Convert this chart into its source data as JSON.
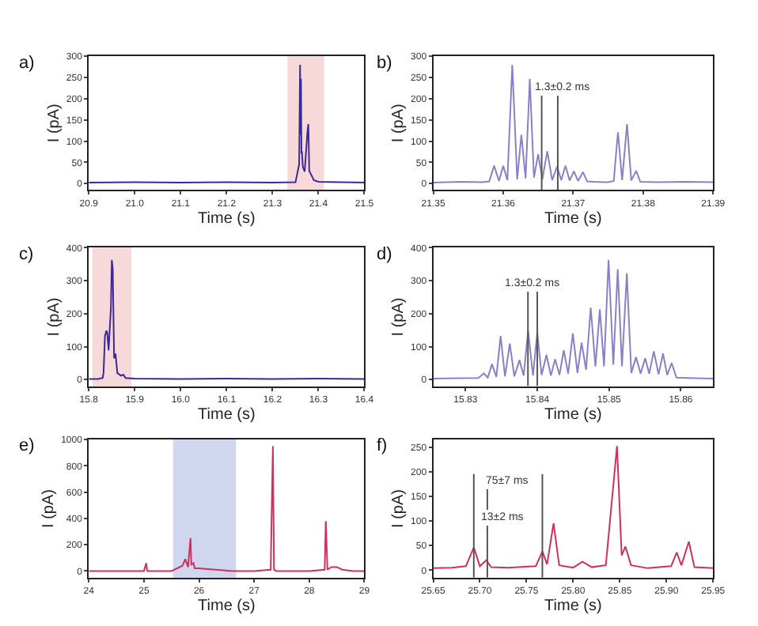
{
  "chart_data": [
    {
      "type": "line",
      "title": "a)",
      "xlabel": "Time (s)",
      "ylabel": "I (pA)",
      "xlim": [
        20.9,
        21.5
      ],
      "ylim": [
        -15,
        300
      ],
      "xticks": [
        20.9,
        {
          "value": 21.0,
          "label": "21.0"
        },
        21.1,
        21.2,
        21.3,
        21.4,
        21.5
      ],
      "yticks": [
        0,
        50,
        100,
        150,
        200,
        250,
        300
      ],
      "x": [
        20.9,
        21.0,
        21.1,
        21.2,
        21.3,
        21.35,
        21.358,
        21.36,
        21.361,
        21.362,
        21.363,
        21.364,
        21.366,
        21.37,
        21.376,
        21.378,
        21.38,
        21.39,
        21.4,
        21.45,
        21.5
      ],
      "series": [
        {
          "color": "#3b2a94",
          "values": [
            2,
            3,
            2,
            3,
            2,
            3,
            45,
            280,
            115,
            247,
            70,
            76,
            40,
            28,
            121,
            140,
            30,
            8,
            4,
            3,
            2
          ]
        }
      ],
      "bands": [
        {
          "axis": "x",
          "from": 21.335,
          "to": 21.41,
          "color": "#e06a6a"
        }
      ],
      "grid": false
    },
    {
      "type": "line",
      "title": "b)",
      "xlabel": "Time (s)",
      "ylabel": "I (pA)",
      "xlim": [
        21.35,
        21.39
      ],
      "ylim": [
        -15,
        300
      ],
      "xticks": [
        21.35,
        21.36,
        21.37,
        21.38,
        21.39
      ],
      "yticks": [
        0,
        50,
        100,
        150,
        200,
        250,
        300
      ],
      "x": [
        21.35,
        21.354,
        21.357,
        21.358,
        21.3587,
        21.3594,
        21.36,
        21.3606,
        21.3613,
        21.362,
        21.3626,
        21.3632,
        21.3638,
        21.3644,
        21.365,
        21.3656,
        21.3663,
        21.367,
        21.3677,
        21.3683,
        21.3689,
        21.3695,
        21.3701,
        21.3707,
        21.3714,
        21.372,
        21.373,
        21.375,
        21.3758,
        21.3764,
        21.377,
        21.3777,
        21.3783,
        21.379,
        21.3796,
        21.382,
        21.386,
        21.39
      ],
      "series": [
        {
          "color": "#8a80c8",
          "values": [
            2,
            4,
            3,
            5,
            42,
            6,
            42,
            8,
            280,
            10,
            115,
            12,
            247,
            14,
            69,
            10,
            76,
            8,
            40,
            8,
            42,
            7,
            29,
            6,
            27,
            5,
            4,
            3,
            6,
            121,
            8,
            140,
            7,
            30,
            4,
            3,
            4,
            3
          ]
        }
      ],
      "ref_lines": [
        {
          "axis": "x",
          "value": 21.3655,
          "color": "#555555"
        },
        {
          "axis": "x",
          "value": 21.3678,
          "color": "#555555"
        }
      ],
      "annotations": [
        {
          "text": "1.3±0.2 ms",
          "x": 21.3685,
          "y": 225
        }
      ],
      "grid": false
    },
    {
      "type": "line",
      "title": "c)",
      "xlabel": "Time (s)",
      "ylabel": "I (pA)",
      "xlim": [
        15.8,
        16.4
      ],
      "ylim": [
        -20,
        400
      ],
      "xticks": [
        15.8,
        15.9,
        {
          "value": 16.0,
          "label": "16.0"
        },
        16.1,
        16.2,
        16.3,
        16.4
      ],
      "yticks": [
        0,
        100,
        200,
        300,
        400
      ],
      "x": [
        15.8,
        15.82,
        15.83,
        15.832,
        15.835,
        15.838,
        15.84,
        15.843,
        15.845,
        15.848,
        15.85,
        15.852,
        15.855,
        15.858,
        15.862,
        15.87,
        15.875,
        15.88,
        15.9,
        16.0,
        16.1,
        16.2,
        16.3,
        16.4
      ],
      "series": [
        {
          "color": "#3b2a94",
          "values": [
            2,
            2,
            5,
            20,
            132,
            148,
            143,
            89,
            140,
            218,
            363,
            335,
            65,
            79,
            20,
            12,
            15,
            5,
            3,
            2,
            3,
            2,
            3,
            2
          ]
        }
      ],
      "bands": [
        {
          "axis": "x",
          "from": 15.81,
          "to": 15.89,
          "color": "#e06a6a"
        }
      ],
      "grid": false
    },
    {
      "type": "line",
      "title": "d)",
      "xlabel": "Time (s)",
      "ylabel": "I (pA)",
      "xlim": [
        15.8255,
        15.8645
      ],
      "ylim": [
        -20,
        400
      ],
      "xticks": [
        15.83,
        15.84,
        15.85,
        15.86
      ],
      "yticks": [
        0,
        100,
        200,
        300,
        400
      ],
      "x": [
        15.8255,
        15.829,
        15.8318,
        15.83255,
        15.8331,
        15.83369,
        15.8343,
        15.83489,
        15.8355,
        15.83617,
        15.8368,
        15.83752,
        15.8381,
        15.83872,
        15.8394,
        15.84,
        15.8406,
        15.84128,
        15.8419,
        15.84248,
        15.8431,
        15.84369,
        15.8443,
        15.84496,
        15.8456,
        15.84617,
        15.8468,
        15.84745,
        15.8481,
        15.84872,
        15.8493,
        15.84993,
        15.8506,
        15.85121,
        15.8518,
        15.85248,
        15.8531,
        15.85376,
        15.8544,
        15.85504,
        15.8556,
        15.85624,
        15.8569,
        15.85752,
        15.8581,
        15.85872,
        15.8594,
        15.862,
        15.8645
      ],
      "series": [
        {
          "color": "#8a80c8",
          "values": [
            3,
            4,
            5,
            19,
            6,
            47,
            8,
            132,
            10,
            109,
            10,
            59,
            12,
            148,
            12,
            143,
            14,
            75,
            12,
            62,
            14,
            89,
            18,
            140,
            20,
            112,
            30,
            218,
            40,
            213,
            40,
            363,
            45,
            335,
            40,
            322,
            20,
            68,
            18,
            65,
            18,
            86,
            16,
            79,
            14,
            50,
            6,
            4,
            3
          ]
        }
      ],
      "ref_lines": [
        {
          "axis": "x",
          "value": 15.8387,
          "color": "#555555"
        },
        {
          "axis": "x",
          "value": 15.84,
          "color": "#555555"
        }
      ],
      "annotations": [
        {
          "text": "1.3±0.2 ms",
          "x": 15.8393,
          "y": 290
        }
      ],
      "grid": false
    },
    {
      "type": "line",
      "title": "e)",
      "xlabel": "Time (s)",
      "ylabel": "I (pA)",
      "xlim": [
        24,
        29
      ],
      "ylim": [
        -50,
        1000
      ],
      "xticks": [
        24,
        25,
        26,
        27,
        28,
        29
      ],
      "yticks": [
        0,
        200,
        400,
        600,
        800,
        1000
      ],
      "x": [
        24,
        24.5,
        25.0,
        25.04,
        25.06,
        25.1,
        25.5,
        25.7,
        25.75,
        25.8,
        25.845,
        25.86,
        25.9,
        25.92,
        26.0,
        26.3,
        26.6,
        27.0,
        27.3,
        27.34,
        27.36,
        27.4,
        28.0,
        28.28,
        28.3,
        28.33,
        28.4,
        28.5,
        28.6,
        28.8,
        29
      ],
      "series": [
        {
          "color": "#d0305a",
          "values": [
            0,
            0,
            0,
            60,
            0,
            0,
            0,
            40,
            90,
            30,
            250,
            50,
            60,
            20,
            20,
            10,
            0,
            0,
            10,
            950,
            10,
            0,
            0,
            10,
            380,
            10,
            30,
            30,
            10,
            0,
            0
          ]
        }
      ],
      "bands": [
        {
          "axis": "x",
          "from": 25.55,
          "to": 26.65,
          "color": "#4a5fc0"
        }
      ],
      "grid": false
    },
    {
      "type": "line",
      "title": "f)",
      "xlabel": "Time (s)",
      "ylabel": "I (pA)",
      "xlim": [
        25.65,
        25.95
      ],
      "ylim": [
        -15,
        265
      ],
      "xticks": [
        25.65,
        {
          "value": 25.7,
          "label": "25.70"
        },
        25.75,
        {
          "value": 25.8,
          "label": "25.80"
        },
        25.85,
        {
          "value": 25.9,
          "label": "25.90"
        },
        25.95
      ],
      "yticks": [
        0,
        50,
        100,
        150,
        200,
        250
      ],
      "x": [
        25.65,
        25.67,
        25.685,
        25.6935,
        25.7,
        25.707,
        25.712,
        25.73,
        25.76,
        25.767,
        25.772,
        25.779,
        25.785,
        25.8,
        25.81,
        25.82,
        25.835,
        25.847,
        25.852,
        25.856,
        25.862,
        25.88,
        25.905,
        25.911,
        25.916,
        25.924,
        25.93,
        25.95
      ],
      "series": [
        {
          "color": "#d0305a",
          "values": [
            4,
            5,
            8,
            46,
            8,
            20,
            6,
            5,
            8,
            38,
            12,
            95,
            10,
            5,
            17,
            6,
            10,
            252,
            30,
            48,
            10,
            4,
            8,
            36,
            10,
            58,
            6,
            4
          ]
        }
      ],
      "ref_lines": [
        {
          "axis": "x",
          "value": 25.6935,
          "color": "#555555"
        },
        {
          "axis": "x",
          "value": 25.708,
          "color": "#555555"
        },
        {
          "axis": "x",
          "value": 25.767,
          "color": "#555555"
        }
      ],
      "annotations": [
        {
          "text": "75±7 ms",
          "x": 25.73,
          "y": 180
        },
        {
          "text": "13±2 ms",
          "x": 25.725,
          "y": 105
        }
      ],
      "grid": false
    }
  ]
}
